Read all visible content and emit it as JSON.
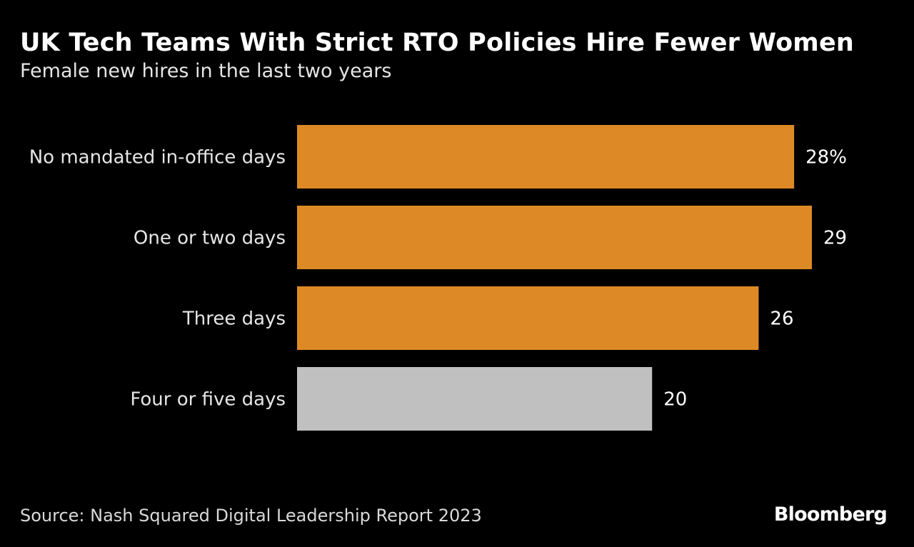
{
  "header": {
    "title": "UK Tech Teams With Strict RTO Policies Hire Fewer Women",
    "subtitle": "Female new hires in the last two years"
  },
  "footer": {
    "source": "Source: Nash Squared Digital Leadership Report 2023",
    "logo": "Bloomberg"
  },
  "chart_data": {
    "type": "bar",
    "orientation": "horizontal",
    "title": "UK Tech Teams With Strict RTO Policies Hire Fewer Women",
    "subtitle": "Female new hires in the last two years",
    "categories": [
      "No mandated in-office days",
      "One or two days",
      "Three days",
      "Four or five days"
    ],
    "values": [
      28,
      29,
      26,
      20
    ],
    "value_labels": [
      "28%",
      "29",
      "26",
      "20"
    ],
    "unit": "%",
    "colors": [
      "#dd8a26",
      "#dd8a26",
      "#dd8a26",
      "#c0c0c0"
    ],
    "xlim": [
      0,
      29
    ],
    "grid": false,
    "legend": "none"
  }
}
